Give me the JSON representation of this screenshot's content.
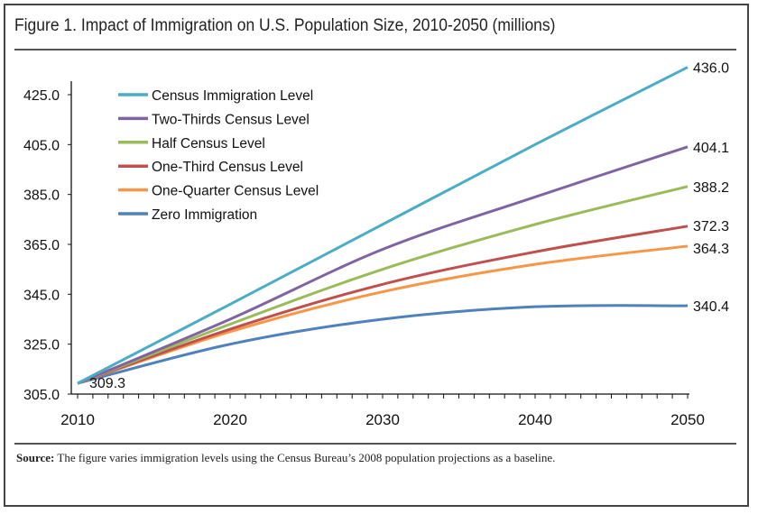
{
  "chart_data": {
    "type": "line",
    "title": "Figure 1. Impact of Immigration on U.S. Population Size, 2010-2050 (millions)",
    "x": [
      2010,
      2020,
      2030,
      2040,
      2050
    ],
    "xticks": [
      "2010",
      "2020",
      "2030",
      "2040",
      "2050"
    ],
    "xlim": [
      2010,
      2050
    ],
    "ylim": [
      305,
      435
    ],
    "yticks": [
      "305.0",
      "325.0",
      "345.0",
      "365.0",
      "385.0",
      "405.0",
      "425.0"
    ],
    "grid": false,
    "legend": "top-left",
    "series": [
      {
        "name": "Census Immigration Level",
        "color": "#4bacc6",
        "values": [
          309.3,
          341,
          373,
          405,
          436.0
        ],
        "end_label": "436.0"
      },
      {
        "name": "Two-Thirds Census Level",
        "color": "#8064a2",
        "values": [
          309.3,
          335,
          363,
          384,
          404.1
        ],
        "end_label": "404.1"
      },
      {
        "name": "Half Census Level",
        "color": "#9bbb59",
        "values": [
          309.3,
          333,
          355,
          373,
          388.2
        ],
        "end_label": "388.2"
      },
      {
        "name": "One-Third Census Level",
        "color": "#c0504d",
        "values": [
          309.3,
          331,
          349,
          362,
          372.3
        ],
        "end_label": "372.3"
      },
      {
        "name": "One-Quarter Census Level",
        "color": "#f79646",
        "values": [
          309.3,
          330,
          346,
          357,
          364.3
        ],
        "end_label": "364.3"
      },
      {
        "name": "Zero Immigration",
        "color": "#4f81bd",
        "values": [
          309.3,
          325,
          335,
          340,
          340.4
        ],
        "end_label": "340.4"
      }
    ],
    "start_label": "309.3",
    "source_label": "Source:",
    "source_text": " The figure varies immigration levels using the Census Bureau’s 2008 population projections as a baseline."
  }
}
